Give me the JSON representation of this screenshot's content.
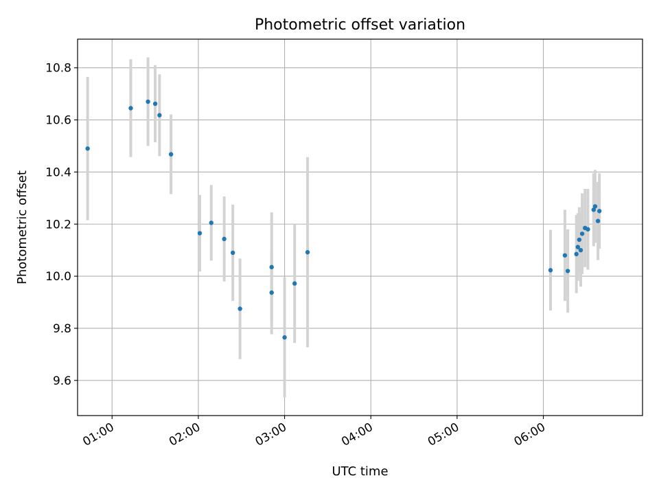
{
  "chart_data": {
    "type": "scatter",
    "title": "Photometric offset variation",
    "xlabel": "UTC time",
    "ylabel": "Photometric offset",
    "x_axis_type": "time",
    "xlim": [
      "00:36",
      "07:09"
    ],
    "ylim": [
      9.465,
      10.91
    ],
    "grid": true,
    "x_ticks": [
      "01:00",
      "02:00",
      "03:00",
      "04:00",
      "05:00",
      "06:00"
    ],
    "y_ticks": [
      9.6,
      9.8,
      10.0,
      10.2,
      10.4,
      10.6,
      10.8
    ],
    "y_tick_labels": [
      "9.6",
      "9.8",
      "10.0",
      "10.2",
      "10.4",
      "10.6",
      "10.8"
    ],
    "colors": {
      "marker": "#1f77b4",
      "errorbar": "#d3d3d3",
      "grid": "#b0b0b0"
    },
    "points": [
      {
        "x": "00:43",
        "y": 10.49,
        "yerr": 0.275
      },
      {
        "x": "01:13",
        "y": 10.645,
        "yerr": 0.188
      },
      {
        "x": "01:25",
        "y": 10.67,
        "yerr": 0.17
      },
      {
        "x": "01:30",
        "y": 10.662,
        "yerr": 0.148
      },
      {
        "x": "01:33",
        "y": 10.618,
        "yerr": 0.157
      },
      {
        "x": "01:41",
        "y": 10.468,
        "yerr": 0.153
      },
      {
        "x": "02:01",
        "y": 10.165,
        "yerr": 0.147
      },
      {
        "x": "02:09",
        "y": 10.205,
        "yerr": 0.145
      },
      {
        "x": "02:18",
        "y": 10.143,
        "yerr": 0.163
      },
      {
        "x": "02:24",
        "y": 10.09,
        "yerr": 0.185
      },
      {
        "x": "02:29",
        "y": 9.875,
        "yerr": 0.193
      },
      {
        "x": "02:51",
        "y": 10.035,
        "yerr": 0.21
      },
      {
        "x": "02:51",
        "y": 9.937,
        "yerr": 0.16
      },
      {
        "x": "03:00",
        "y": 9.765,
        "yerr": 0.23
      },
      {
        "x": "03:07",
        "y": 9.972,
        "yerr": 0.228
      },
      {
        "x": "03:16",
        "y": 10.092,
        "yerr": 0.365
      },
      {
        "x": "06:05",
        "y": 10.023,
        "yerr": 0.155
      },
      {
        "x": "06:15",
        "y": 10.08,
        "yerr": 0.175
      },
      {
        "x": "06:17",
        "y": 10.02,
        "yerr": 0.16
      },
      {
        "x": "06:23",
        "y": 10.085,
        "yerr": 0.15
      },
      {
        "x": "06:24",
        "y": 10.112,
        "yerr": 0.13
      },
      {
        "x": "06:25",
        "y": 10.14,
        "yerr": 0.125
      },
      {
        "x": "06:26",
        "y": 10.1,
        "yerr": 0.14
      },
      {
        "x": "06:27",
        "y": 10.163,
        "yerr": 0.155
      },
      {
        "x": "06:29",
        "y": 10.185,
        "yerr": 0.15
      },
      {
        "x": "06:31",
        "y": 10.18,
        "yerr": 0.155
      },
      {
        "x": "06:35",
        "y": 10.255,
        "yerr": 0.14
      },
      {
        "x": "06:36",
        "y": 10.268,
        "yerr": 0.14
      },
      {
        "x": "06:38",
        "y": 10.212,
        "yerr": 0.15
      },
      {
        "x": "06:39",
        "y": 10.25,
        "yerr": 0.145
      }
    ]
  }
}
